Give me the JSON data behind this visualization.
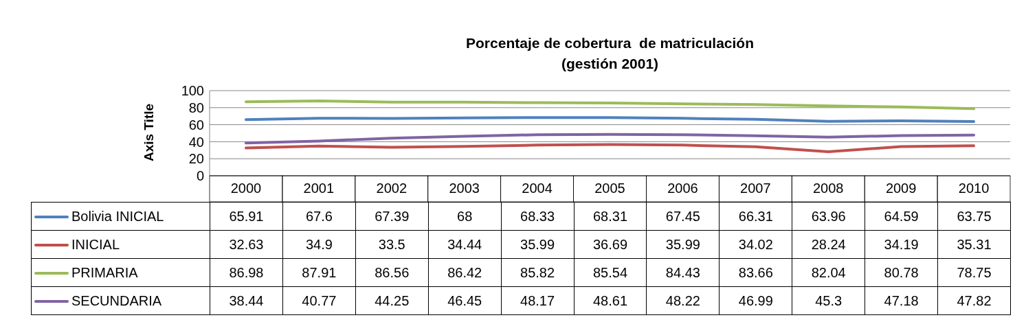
{
  "chart_data": {
    "type": "line",
    "title": "Porcentaje de cobertura  de matriculación\n(gestión 2001)",
    "ylabel": "Axis Title",
    "categories": [
      "2000",
      "2001",
      "2002",
      "2003",
      "2004",
      "2005",
      "2006",
      "2007",
      "2008",
      "2009",
      "2010"
    ],
    "series": [
      {
        "name": "Bolivia INICIAL",
        "color": "#4f81bd",
        "values": [
          65.91,
          67.6,
          67.39,
          68,
          68.33,
          68.31,
          67.45,
          66.31,
          63.96,
          64.59,
          63.75
        ]
      },
      {
        "name": "INICIAL",
        "color": "#c0504d",
        "values": [
          32.63,
          34.9,
          33.5,
          34.44,
          35.99,
          36.69,
          35.99,
          34.02,
          28.24,
          34.19,
          35.31
        ]
      },
      {
        "name": "PRIMARIA",
        "color": "#9bbb59",
        "values": [
          86.98,
          87.91,
          86.56,
          86.42,
          85.82,
          85.54,
          84.43,
          83.66,
          82.04,
          80.78,
          78.75
        ]
      },
      {
        "name": "SECUNDARIA",
        "color": "#8064a2",
        "values": [
          38.44,
          40.77,
          44.25,
          46.45,
          48.17,
          48.61,
          48.22,
          46.99,
          45.3,
          47.18,
          47.82
        ]
      }
    ],
    "ylim": [
      0,
      100
    ],
    "yticks": [
      0,
      20,
      40,
      60,
      80,
      100
    ],
    "grid": "y",
    "legend": "bottom",
    "data_labels": true,
    "marker": "none",
    "line_style": "solid"
  }
}
